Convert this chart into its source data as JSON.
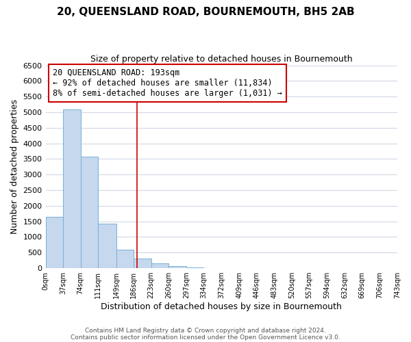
{
  "title": "20, QUEENSLAND ROAD, BOURNEMOUTH, BH5 2AB",
  "subtitle": "Size of property relative to detached houses in Bournemouth",
  "xlabel": "Distribution of detached houses by size in Bournemouth",
  "ylabel": "Number of detached properties",
  "bar_color": "#c5d8ee",
  "bar_edge_color": "#7aafd4",
  "vline_color": "#cc0000",
  "vline_x": 193,
  "bin_edges": [
    0,
    37,
    74,
    111,
    149,
    186,
    223,
    260,
    297,
    334,
    372,
    409,
    446,
    483,
    520,
    557,
    594,
    632,
    669,
    706,
    743
  ],
  "bin_counts": [
    1640,
    5090,
    3580,
    1420,
    590,
    300,
    150,
    70,
    30,
    0,
    0,
    0,
    0,
    0,
    0,
    0,
    0,
    0,
    0,
    0
  ],
  "ylim": [
    0,
    6500
  ],
  "yticks": [
    0,
    500,
    1000,
    1500,
    2000,
    2500,
    3000,
    3500,
    4000,
    4500,
    5000,
    5500,
    6000,
    6500
  ],
  "xtick_labels": [
    "0sqm",
    "37sqm",
    "74sqm",
    "111sqm",
    "149sqm",
    "186sqm",
    "223sqm",
    "260sqm",
    "297sqm",
    "334sqm",
    "372sqm",
    "409sqm",
    "446sqm",
    "483sqm",
    "520sqm",
    "557sqm",
    "594sqm",
    "632sqm",
    "669sqm",
    "706sqm",
    "743sqm"
  ],
  "annotation_title": "20 QUEENSLAND ROAD: 193sqm",
  "annotation_line1": "← 92% of detached houses are smaller (11,834)",
  "annotation_line2": "8% of semi-detached houses are larger (1,031) →",
  "annotation_box_color": "#ffffff",
  "annotation_box_edge": "#cc0000",
  "footer1": "Contains HM Land Registry data © Crown copyright and database right 2024.",
  "footer2": "Contains public sector information licensed under the Open Government Licence v3.0.",
  "background_color": "#ffffff",
  "grid_color": "#d0d8e4"
}
